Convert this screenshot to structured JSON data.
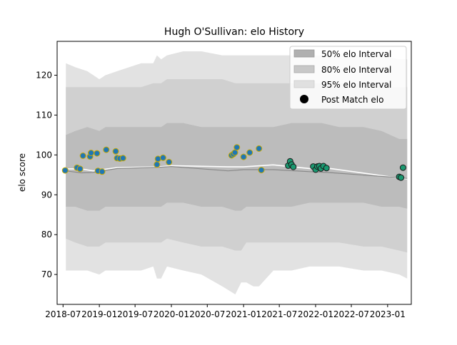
{
  "chart_data": {
    "type": "line",
    "title": "Hugh O'Sullivan: elo History",
    "xlabel": "",
    "ylabel": "elo score",
    "ylim": [
      62.5,
      128.5
    ],
    "xlim": [
      "2018-06-01",
      "2023-05-01"
    ],
    "yticks": [
      70,
      80,
      90,
      100,
      110,
      120
    ],
    "xticks": [
      {
        "date": "2018-07-01",
        "label": "2018-07"
      },
      {
        "date": "2019-01-01",
        "label": "2019-01"
      },
      {
        "date": "2019-07-01",
        "label": "2019-07"
      },
      {
        "date": "2020-01-01",
        "label": "2020-01"
      },
      {
        "date": "2020-07-01",
        "label": "2020-07"
      },
      {
        "date": "2021-01-01",
        "label": "2021-01"
      },
      {
        "date": "2021-07-01",
        "label": "2021-07"
      },
      {
        "date": "2022-01-01",
        "label": "2022-01"
      },
      {
        "date": "2022-07-01",
        "label": "2022-07"
      },
      {
        "date": "2023-01-01",
        "label": "2023-01"
      }
    ],
    "grid": false,
    "legend_position": "top-right",
    "legend": [
      {
        "label": "50% elo Interval",
        "kind": "patch",
        "color": "#b0b0b0"
      },
      {
        "label": "80% elo Interval",
        "kind": "patch",
        "color": "#c8c8c8"
      },
      {
        "label": "95% elo Interval",
        "kind": "patch",
        "color": "#e0e0e0"
      },
      {
        "label": "Post Match elo",
        "kind": "marker",
        "color": "#000000"
      }
    ],
    "colors": {
      "band95": "#e2e2e2",
      "band80": "#d0d0d0",
      "band50": "#bcbcbc",
      "mean_line": "#ffffff",
      "median_line": "#888888",
      "point_early": "#1f77b4",
      "point_early_edge": "#c8a800",
      "point_late": "#1a9870",
      "point_late_edge": "#1a1a1a"
    },
    "bands": {
      "dates": [
        "2018-07-15",
        "2018-09-01",
        "2018-11-01",
        "2019-01-01",
        "2019-02-01",
        "2019-04-01",
        "2019-06-01",
        "2019-08-01",
        "2019-10-01",
        "2019-10-20",
        "2019-11-10",
        "2019-12-10",
        "2020-03-01",
        "2020-06-01",
        "2020-09-15",
        "2020-11-20",
        "2020-12-20",
        "2021-01-15",
        "2021-02-20",
        "2021-03-20",
        "2021-06-01",
        "2021-09-01",
        "2021-12-01",
        "2022-02-01",
        "2022-05-01",
        "2022-09-01",
        "2022-12-01",
        "2023-03-01",
        "2023-04-10"
      ],
      "lo95": [
        71,
        71,
        71,
        70,
        71,
        71,
        71,
        71,
        72,
        69,
        69,
        72,
        71,
        70,
        67,
        65,
        68,
        68,
        67,
        67,
        71,
        71,
        72,
        72,
        72,
        71,
        71,
        70,
        69
      ],
      "hi95": [
        123,
        122,
        121,
        119,
        120,
        121,
        122,
        123,
        123,
        125,
        124,
        125,
        126,
        126,
        125,
        125,
        125,
        125,
        125,
        125,
        125,
        125,
        125,
        125,
        125,
        125,
        125,
        124,
        124
      ],
      "lo80": [
        79,
        78,
        77,
        77,
        78,
        78,
        78,
        78,
        78,
        78,
        78,
        79,
        78,
        77,
        77,
        76,
        76,
        78,
        78,
        78,
        78,
        78,
        78,
        78,
        78,
        77,
        77,
        76,
        75.5
      ],
      "hi80": [
        117,
        117,
        117,
        117,
        117,
        117,
        117,
        117,
        118,
        118,
        118,
        119,
        119,
        119,
        119,
        118,
        118,
        118,
        118,
        118,
        118,
        118,
        118,
        118,
        118,
        118,
        117,
        117,
        117
      ],
      "lo50": [
        87,
        87,
        86,
        86,
        87,
        87,
        87,
        87,
        87,
        87,
        87,
        88,
        88,
        87,
        87,
        86,
        86,
        87,
        87,
        87,
        87,
        87,
        88,
        88,
        88,
        88,
        87,
        87,
        86.5
      ],
      "hi50": [
        105,
        106,
        107,
        106,
        107,
        107,
        107,
        107,
        107,
        107,
        107,
        108,
        108,
        107,
        107,
        107,
        107,
        107,
        107,
        107,
        107,
        108,
        108,
        108,
        107,
        107,
        106,
        104,
        104
      ]
    },
    "series": [
      {
        "kind": "mean-line",
        "x": [
          "2018-07-15",
          "2018-10-01",
          "2018-12-01",
          "2019-04-01",
          "2019-11-01",
          "2020-01-01",
          "2020-10-15",
          "2021-01-01",
          "2021-06-01",
          "2021-12-01",
          "2022-03-01",
          "2023-03-01",
          "2023-04-10"
        ],
        "y": [
          96.5,
          96.5,
          96,
          96.8,
          97,
          97.3,
          97,
          97,
          97.5,
          96.6,
          96.7,
          94.2,
          94
        ]
      },
      {
        "kind": "median-line",
        "x": [
          "2018-07-15",
          "2018-10-01",
          "2018-12-01",
          "2019-04-01",
          "2019-11-01",
          "2020-01-01",
          "2020-10-15",
          "2021-01-01",
          "2021-06-01",
          "2021-12-01",
          "2022-03-01",
          "2023-03-01",
          "2023-04-10"
        ],
        "y": [
          96,
          95.5,
          95.6,
          96.6,
          96.9,
          97.1,
          96,
          96.3,
          96.3,
          95.8,
          95.6,
          94.3,
          94.1
        ]
      },
      {
        "name": "Post Match elo",
        "kind": "points",
        "points": [
          {
            "x": "2018-07-12",
            "y": 96.1,
            "group": "early"
          },
          {
            "x": "2018-09-10",
            "y": 96.8,
            "group": "early"
          },
          {
            "x": "2018-09-25",
            "y": 96.5,
            "group": "early"
          },
          {
            "x": "2018-10-10",
            "y": 99.8,
            "group": "early"
          },
          {
            "x": "2018-11-15",
            "y": 99.6,
            "group": "early"
          },
          {
            "x": "2018-11-20",
            "y": 100.5,
            "group": "early"
          },
          {
            "x": "2018-12-20",
            "y": 100.4,
            "group": "early"
          },
          {
            "x": "2018-12-25",
            "y": 96.0,
            "group": "early"
          },
          {
            "x": "2019-01-15",
            "y": 95.8,
            "group": "early"
          },
          {
            "x": "2019-02-05",
            "y": 101.3,
            "group": "early"
          },
          {
            "x": "2019-03-25",
            "y": 100.9,
            "group": "early"
          },
          {
            "x": "2019-04-01",
            "y": 99.2,
            "group": "early"
          },
          {
            "x": "2019-04-15",
            "y": 99.1,
            "group": "early"
          },
          {
            "x": "2019-05-01",
            "y": 99.2,
            "group": "early"
          },
          {
            "x": "2019-10-20",
            "y": 97.6,
            "group": "early"
          },
          {
            "x": "2019-10-25",
            "y": 99.0,
            "group": "early"
          },
          {
            "x": "2019-11-20",
            "y": 99.3,
            "group": "early"
          },
          {
            "x": "2019-12-20",
            "y": 98.2,
            "group": "early"
          },
          {
            "x": "2020-11-01",
            "y": 99.9,
            "group": "early"
          },
          {
            "x": "2020-11-10",
            "y": 100.2,
            "group": "early"
          },
          {
            "x": "2020-11-18",
            "y": 100.6,
            "group": "early"
          },
          {
            "x": "2020-11-28",
            "y": 101.9,
            "group": "early"
          },
          {
            "x": "2021-01-01",
            "y": 99.5,
            "group": "early"
          },
          {
            "x": "2021-02-01",
            "y": 100.6,
            "group": "early"
          },
          {
            "x": "2021-03-20",
            "y": 101.6,
            "group": "early"
          },
          {
            "x": "2021-04-01",
            "y": 96.2,
            "group": "early"
          },
          {
            "x": "2021-08-15",
            "y": 97.3,
            "group": "late"
          },
          {
            "x": "2021-08-25",
            "y": 98.4,
            "group": "late"
          },
          {
            "x": "2021-09-01",
            "y": 97.6,
            "group": "late"
          },
          {
            "x": "2021-09-10",
            "y": 97.0,
            "group": "late"
          },
          {
            "x": "2021-12-20",
            "y": 97.1,
            "group": "late"
          },
          {
            "x": "2022-01-01",
            "y": 96.3,
            "group": "late"
          },
          {
            "x": "2022-01-10",
            "y": 97.1,
            "group": "late"
          },
          {
            "x": "2022-01-20",
            "y": 97.2,
            "group": "late"
          },
          {
            "x": "2022-01-28",
            "y": 96.6,
            "group": "late"
          },
          {
            "x": "2022-02-10",
            "y": 97.2,
            "group": "late"
          },
          {
            "x": "2022-02-25",
            "y": 96.7,
            "group": "late"
          },
          {
            "x": "2023-03-01",
            "y": 94.5,
            "group": "late"
          },
          {
            "x": "2023-03-10",
            "y": 94.3,
            "group": "late"
          },
          {
            "x": "2023-03-20",
            "y": 96.8,
            "group": "late"
          }
        ]
      }
    ]
  }
}
